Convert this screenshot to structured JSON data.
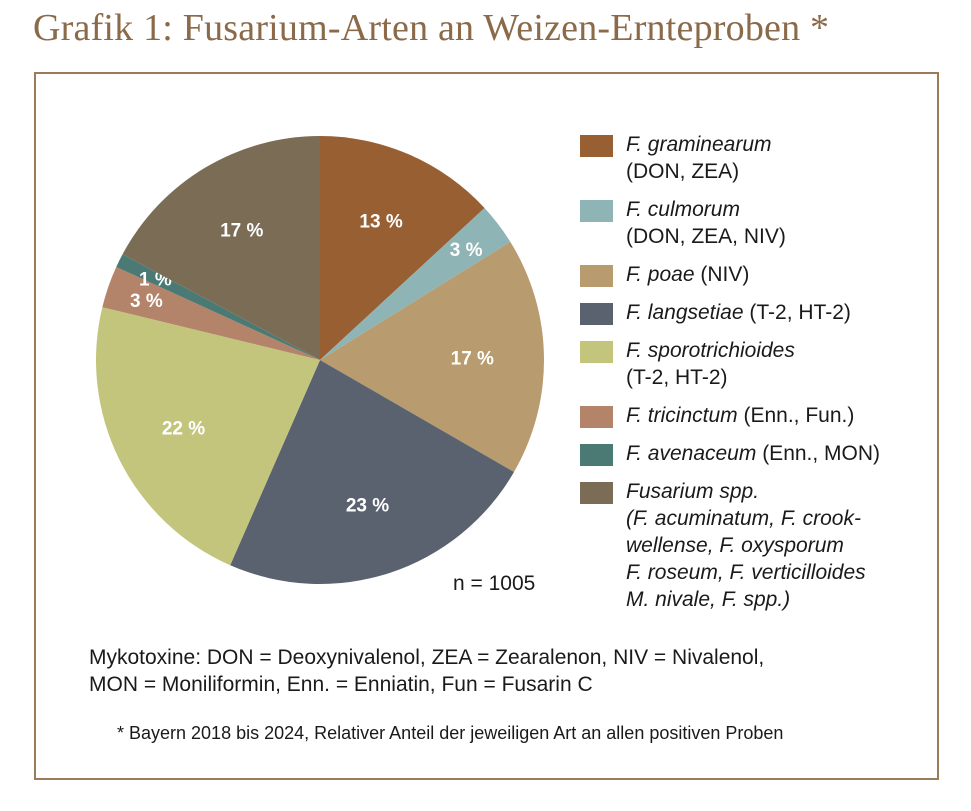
{
  "title": "Grafik 1: Fusarium-Arten an Weizen-Ernteproben *",
  "n_label": "n = 1005",
  "mykotoxine": "Mykotoxine: DON = Deoxynivalenol, ZEA = Zearalenon, NIV = Nivalenol,\nMON = Moniliformin, Enn. = Enniatin, Fun = Fusarin C",
  "footnote": "* Bayern 2018 bis 2024, Relativer Anteil der jeweiligen Art an allen positiven Proben",
  "chart_data": {
    "type": "pie",
    "title": "Grafik 1: Fusarium-Arten an Weizen-Ernteproben *",
    "legend_position": "right",
    "slices": [
      {
        "label": "F. graminearum",
        "italic": "F. graminearum",
        "rest": "\n(DON, ZEA)",
        "value": 13,
        "display": "13 %",
        "color": "#985f33"
      },
      {
        "label": "F. culmorum",
        "italic": "F. culmorum",
        "rest": "\n(DON, ZEA, NIV)",
        "value": 3,
        "display": "3 %",
        "color": "#8fb4b5"
      },
      {
        "label": "F. poae",
        "italic": "F. poae",
        "rest": " (NIV)",
        "value": 17,
        "display": "17 %",
        "color": "#b89b6e"
      },
      {
        "label": "F. langsetiae",
        "italic": "F. langsetiae",
        "rest": " (T-2, HT-2)",
        "value": 23,
        "display": "23 %",
        "color": "#5a6270"
      },
      {
        "label": "F. sporotrichioides",
        "italic": "F. sporotrichioides",
        "rest": "\n(T-2, HT-2)",
        "value": 22,
        "display": "22 %",
        "color": "#c4c57d"
      },
      {
        "label": "F. tricinctum",
        "italic": "F. tricinctum",
        "rest": " (Enn., Fun.)",
        "value": 3,
        "display": "3 %",
        "color": "#b3836a"
      },
      {
        "label": "F. avenaceum",
        "italic": "F. avenaceum",
        "rest": " (Enn., MON)",
        "value": 1,
        "display": "1 %",
        "color": "#4a7a73"
      },
      {
        "label": "Fusarium spp.",
        "italic": "Fusarium spp.\n(F. acuminatum, F. crook-\nwellense, F. oxysporum\nF. roseum, F. verticilloides\nM. nivale, F. spp.)",
        "rest": "",
        "value": 17,
        "display": "17 %",
        "color": "#7b6d55"
      }
    ]
  }
}
